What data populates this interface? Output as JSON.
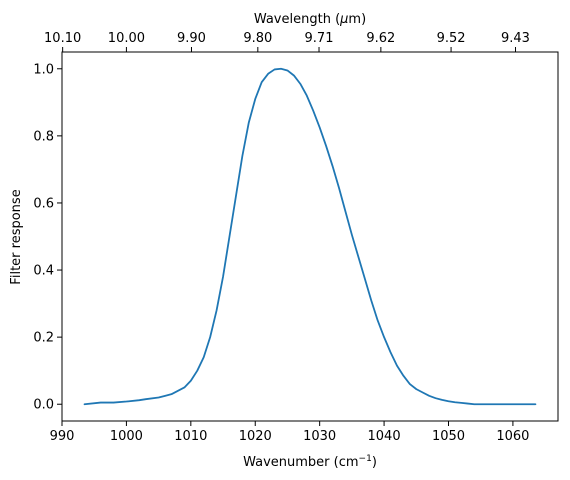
{
  "chart_data": {
    "type": "line",
    "xlabel": "Wavenumber (cm",
    "xlabel_sup": "−1",
    "xlabel_end": ")",
    "ylabel": "Filter response",
    "top_xlabel": "Wavelength (",
    "top_xlabel_mu": "μ",
    "top_xlabel_end": "m)",
    "xlim": [
      990,
      1067
    ],
    "ylim": [
      -0.05,
      1.05
    ],
    "x_ticks": [
      990,
      1000,
      1010,
      1020,
      1030,
      1040,
      1050,
      1060
    ],
    "x_tick_labels": [
      "990",
      "1000",
      "1010",
      "1020",
      "1030",
      "1040",
      "1050",
      "1060"
    ],
    "y_ticks": [
      0.0,
      0.2,
      0.4,
      0.6,
      0.8,
      1.0
    ],
    "y_tick_labels": [
      "0.0",
      "0.2",
      "0.4",
      "0.6",
      "0.8",
      "1.0"
    ],
    "top_ticks": [
      {
        "label": "10.10",
        "wavenumber": 990.1
      },
      {
        "label": "10.00",
        "wavenumber": 1000.0
      },
      {
        "label": "9.90",
        "wavenumber": 1010.1
      },
      {
        "label": "9.80",
        "wavenumber": 1020.4
      },
      {
        "label": "9.71",
        "wavenumber": 1029.9
      },
      {
        "label": "9.62",
        "wavenumber": 1039.5
      },
      {
        "label": "9.52",
        "wavenumber": 1050.4
      },
      {
        "label": "9.43",
        "wavenumber": 1060.4
      }
    ],
    "grid": false,
    "line_color": "#1f77b4",
    "series": [
      {
        "x": [
          993.5,
          996,
          998,
          1000,
          1002,
          1003,
          1005,
          1006,
          1007,
          1008,
          1009,
          1010,
          1011,
          1012,
          1013,
          1014,
          1015,
          1016,
          1017,
          1018,
          1019,
          1020,
          1021,
          1022,
          1023,
          1024,
          1025,
          1026,
          1027,
          1028,
          1029,
          1030,
          1031,
          1032,
          1033,
          1034,
          1035,
          1036,
          1037,
          1038,
          1039,
          1040,
          1041,
          1042,
          1043,
          1044,
          1045,
          1046,
          1047,
          1048,
          1049,
          1050,
          1051,
          1052,
          1053,
          1054,
          1055,
          1056,
          1058,
          1060,
          1063.5
        ],
        "y": [
          0.0,
          0.005,
          0.005,
          0.008,
          0.012,
          0.015,
          0.02,
          0.025,
          0.03,
          0.04,
          0.05,
          0.07,
          0.1,
          0.14,
          0.2,
          0.28,
          0.38,
          0.5,
          0.62,
          0.74,
          0.84,
          0.91,
          0.96,
          0.985,
          0.998,
          1.0,
          0.995,
          0.98,
          0.955,
          0.92,
          0.875,
          0.825,
          0.77,
          0.71,
          0.645,
          0.575,
          0.505,
          0.44,
          0.375,
          0.31,
          0.25,
          0.2,
          0.155,
          0.115,
          0.085,
          0.06,
          0.045,
          0.035,
          0.025,
          0.018,
          0.013,
          0.009,
          0.006,
          0.004,
          0.002,
          0.0,
          0.0,
          0.0,
          0.0,
          0.0,
          0.0
        ]
      }
    ]
  }
}
